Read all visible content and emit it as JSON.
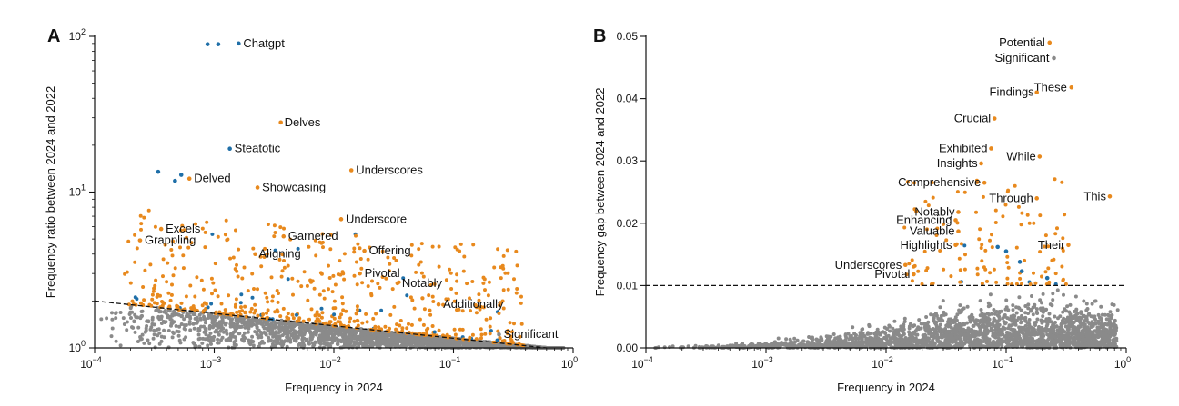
{
  "colors": {
    "orange": "#e8891d",
    "blue": "#1f6fa8",
    "gray": "#8a8a8a",
    "axis": "#111111"
  },
  "chart_data": [
    {
      "panel_label": "A",
      "type": "scatter",
      "xscale": "log",
      "yscale": "log",
      "xlabel": "Frequency in 2024",
      "ylabel": "Frequency ratio between 2024 and 2022",
      "xlim": [
        0.0001,
        1
      ],
      "ylim": [
        1,
        100
      ],
      "xticks": [
        {
          "value": 0.0001,
          "base": "10",
          "exp": "−4"
        },
        {
          "value": 0.001,
          "base": "10",
          "exp": "−3"
        },
        {
          "value": 0.01,
          "base": "10",
          "exp": "−2"
        },
        {
          "value": 0.1,
          "base": "10",
          "exp": "−1"
        },
        {
          "value": 1,
          "base": "10",
          "exp": "0"
        }
      ],
      "yticks": [
        {
          "value": 1,
          "base": "10",
          "exp": "0"
        },
        {
          "value": 10,
          "base": "10",
          "exp": "1"
        },
        {
          "value": 100,
          "base": "10",
          "exp": "2"
        }
      ],
      "threshold_line": {
        "style": "dashed",
        "from": [
          0.0001,
          2.0
        ],
        "to": [
          0.6,
          1.0
        ]
      },
      "labeled_points": [
        {
          "word": "Chatgpt",
          "x": 0.0016,
          "y": 90,
          "color": "blue"
        },
        {
          "word": "Delves",
          "x": 0.0036,
          "y": 28,
          "color": "orange"
        },
        {
          "word": "Steatotic",
          "x": 0.00135,
          "y": 19,
          "color": "blue"
        },
        {
          "word": "Underscores",
          "x": 0.014,
          "y": 13.8,
          "color": "orange"
        },
        {
          "word": "Delved",
          "x": 0.00062,
          "y": 12.2,
          "color": "orange"
        },
        {
          "word": "Showcasing",
          "x": 0.0023,
          "y": 10.7,
          "color": "orange"
        },
        {
          "word": "Underscore",
          "x": 0.0115,
          "y": 6.7,
          "color": "orange"
        },
        {
          "word": "Excels",
          "x": 0.00036,
          "y": 5.8,
          "color": "orange"
        },
        {
          "word": "Garnered",
          "x": 0.0038,
          "y": 5.2,
          "color": "orange"
        },
        {
          "word": "Grappling",
          "x": 0.00024,
          "y": 4.9,
          "color": "orange"
        },
        {
          "word": "Offering",
          "x": 0.018,
          "y": 4.2,
          "color": "orange"
        },
        {
          "word": "Aligning",
          "x": 0.0022,
          "y": 4.0,
          "color": "orange"
        },
        {
          "word": "Pivotal",
          "x": 0.0165,
          "y": 3.0,
          "color": "orange"
        },
        {
          "word": "Notably",
          "x": 0.034,
          "y": 2.6,
          "color": "orange"
        },
        {
          "word": "Additionally",
          "x": 0.075,
          "y": 1.9,
          "color": "orange"
        },
        {
          "word": "Significant",
          "x": 0.24,
          "y": 1.22,
          "color": "gray"
        }
      ],
      "extra_blue_points": [
        {
          "x": 0.00088,
          "y": 89
        },
        {
          "x": 0.00108,
          "y": 89
        },
        {
          "x": 0.00034,
          "y": 13.5
        },
        {
          "x": 0.00047,
          "y": 11.8
        },
        {
          "x": 0.00053,
          "y": 12.9
        }
      ]
    },
    {
      "panel_label": "B",
      "type": "scatter",
      "xscale": "log",
      "yscale": "linear",
      "xlabel": "Frequency in 2024",
      "ylabel": "Frequency gap between 2024 and 2022",
      "xlim": [
        0.0001,
        1
      ],
      "ylim": [
        0,
        0.05
      ],
      "xticks": [
        {
          "value": 0.0001,
          "base": "10",
          "exp": "−4"
        },
        {
          "value": 0.001,
          "base": "10",
          "exp": "−3"
        },
        {
          "value": 0.01,
          "base": "10",
          "exp": "−2"
        },
        {
          "value": 0.1,
          "base": "10",
          "exp": "−1"
        },
        {
          "value": 1,
          "base": "10",
          "exp": "0"
        }
      ],
      "yticks": [
        {
          "value": 0,
          "label": "0.00"
        },
        {
          "value": 0.01,
          "label": "0.01"
        },
        {
          "value": 0.02,
          "label": "0.02"
        },
        {
          "value": 0.03,
          "label": "0.03"
        },
        {
          "value": 0.04,
          "label": "0.04"
        },
        {
          "value": 0.05,
          "label": "0.05"
        }
      ],
      "threshold_line": {
        "style": "dashed",
        "from": [
          0.0001,
          0.01
        ],
        "to": [
          1,
          0.01
        ]
      },
      "labeled_points": [
        {
          "word": "Potential",
          "x": 0.23,
          "y": 0.049,
          "color": "orange"
        },
        {
          "word": "Significant",
          "x": 0.25,
          "y": 0.0465,
          "color": "gray"
        },
        {
          "word": "These",
          "x": 0.35,
          "y": 0.0418,
          "color": "orange"
        },
        {
          "word": "Findings",
          "x": 0.18,
          "y": 0.041,
          "color": "orange"
        },
        {
          "word": "Crucial",
          "x": 0.08,
          "y": 0.0368,
          "color": "orange"
        },
        {
          "word": "Exhibited",
          "x": 0.075,
          "y": 0.032,
          "color": "orange"
        },
        {
          "word": "While",
          "x": 0.19,
          "y": 0.0307,
          "color": "orange"
        },
        {
          "word": "Insights",
          "x": 0.062,
          "y": 0.0296,
          "color": "orange"
        },
        {
          "word": "Comprehensive",
          "x": 0.066,
          "y": 0.0265,
          "color": "orange"
        },
        {
          "word": "Through",
          "x": 0.18,
          "y": 0.024,
          "color": "orange"
        },
        {
          "word": "This",
          "x": 0.73,
          "y": 0.0243,
          "color": "orange"
        },
        {
          "word": "Notably",
          "x": 0.04,
          "y": 0.0218,
          "color": "orange"
        },
        {
          "word": "Enhancing",
          "x": 0.038,
          "y": 0.0205,
          "color": "orange"
        },
        {
          "word": "Valuable",
          "x": 0.04,
          "y": 0.0187,
          "color": "orange"
        },
        {
          "word": "Highlights",
          "x": 0.038,
          "y": 0.0165,
          "color": "orange"
        },
        {
          "word": "Their",
          "x": 0.33,
          "y": 0.0165,
          "color": "orange"
        },
        {
          "word": "Underscores",
          "x": 0.0145,
          "y": 0.0133,
          "color": "orange"
        },
        {
          "word": "Pivotal",
          "x": 0.017,
          "y": 0.0118,
          "color": "orange"
        }
      ],
      "extra_blue_points": [
        {
          "x": 0.085,
          "y": 0.0162
        },
        {
          "x": 0.1,
          "y": 0.0155
        },
        {
          "x": 0.13,
          "y": 0.0138
        },
        {
          "x": 0.135,
          "y": 0.0123
        },
        {
          "x": 0.22,
          "y": 0.0112
        }
      ]
    }
  ]
}
